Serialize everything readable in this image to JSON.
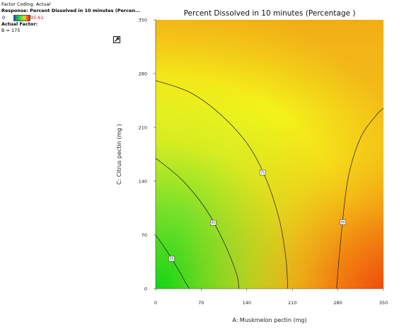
{
  "panel": {
    "factor_coding": "Factor Coding: Actual",
    "response": "Response: Percent Dissolved in 10 minutes  (Percen...",
    "legend_min": "0",
    "legend_max": "95.61",
    "actual_factor_heading": "Actual Factor:",
    "actual_factor_value": "B = 175"
  },
  "icons": {
    "export": "export-icon"
  },
  "colors": {
    "low": "#16d416",
    "mid": "#f4f41a",
    "high": "#f04a0a"
  },
  "chart_data": {
    "type": "contour",
    "title": "Percent Dissolved in 10 minutes  (Percentage )",
    "xlabel": "A: Muskmelon pectin (mg)",
    "ylabel": "C: Citrus pectin (mg )",
    "xlim": [
      0,
      350
    ],
    "ylim": [
      0,
      350
    ],
    "x_ticks": [
      "0",
      "70",
      "140",
      "210",
      "280",
      "350"
    ],
    "y_ticks": [
      "0",
      "70",
      "140",
      "210",
      "280",
      "350"
    ],
    "grid": false,
    "contours": [
      {
        "label": "45",
        "points": [
          [
            0,
            70
          ],
          [
            18,
            48
          ],
          [
            34,
            26
          ],
          [
            46,
            8
          ],
          [
            52,
            0
          ]
        ]
      },
      {
        "label": "60",
        "points": [
          [
            0,
            170
          ],
          [
            40,
            142
          ],
          [
            76,
            105
          ],
          [
            104,
            62
          ],
          [
            124,
            20
          ],
          [
            128,
            0
          ]
        ]
      },
      {
        "label": "75",
        "points": [
          [
            0,
            271
          ],
          [
            54,
            255
          ],
          [
            102,
            225
          ],
          [
            143,
            186
          ],
          [
            170,
            142
          ],
          [
            190,
            90
          ],
          [
            200,
            40
          ],
          [
            203,
            0
          ]
        ]
      },
      {
        "label": "90",
        "points": [
          [
            278,
            0
          ],
          [
            284,
            60
          ],
          [
            295,
            141
          ],
          [
            314,
            195
          ],
          [
            338,
            225
          ],
          [
            350,
            235
          ]
        ]
      }
    ]
  }
}
